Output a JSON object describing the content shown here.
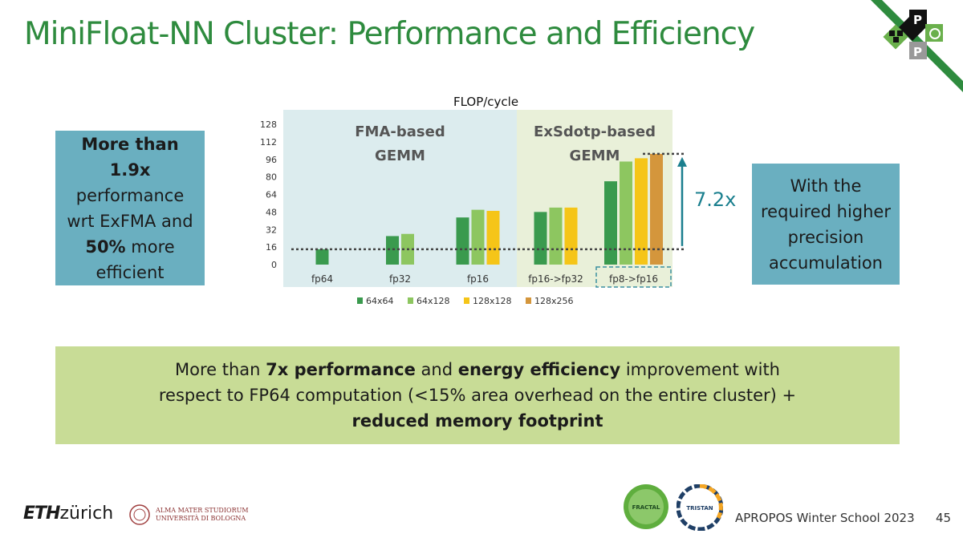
{
  "title": "MiniFloat-NN Cluster: Performance and Efficiency",
  "corner_logo": {
    "letters": [
      "P",
      "P"
    ]
  },
  "left_box": {
    "line1_bold": "More than 1.9x",
    "line2": "performance",
    "line3": "wrt ExFMA and",
    "line4_bold": "50%",
    "line4_rest": " more",
    "line5": "efficient"
  },
  "right_box": {
    "text": "With the required higher precision accumulation"
  },
  "bottom_box": {
    "part1": "More than ",
    "bold1": "7x performance",
    "part2": " and ",
    "bold2": "energy efficiency",
    "part3": " improvement with respect to FP64 computation (<15% area overhead on the entire cluster) + ",
    "bold3": "reduced memory footprint"
  },
  "footer": {
    "eth_bold": "ETH",
    "eth_rest": "zürich",
    "unibo_line1": "ALMA MATER STUDIORUM",
    "unibo_line2": "UNIVERSITÀ DI BOLOGNA",
    "fractal": "FRACTAL",
    "tristan": "TRISTAN",
    "event": "APROPOS Winter School 2023",
    "page": "45"
  },
  "colors": {
    "title": "#2e8b3e",
    "box": "#6aafc0",
    "bottom": "#c8dc96",
    "arrow": "#1a7f8e"
  },
  "chart_data": {
    "type": "bar",
    "title": "FLOP/cycle",
    "categories": [
      "fp64",
      "fp32",
      "fp16",
      "fp16->fp32",
      "fp8->fp16"
    ],
    "series": [
      {
        "name": "64x64",
        "color": "#3a9a4e",
        "values": [
          14,
          26,
          43,
          48,
          76
        ]
      },
      {
        "name": "64x128",
        "color": "#8dc660",
        "values": [
          null,
          28,
          50,
          52,
          94
        ]
      },
      {
        "name": "128x128",
        "color": "#f5c518",
        "values": [
          null,
          null,
          49,
          52,
          97
        ]
      },
      {
        "name": "128x256",
        "color": "#d4963c",
        "values": [
          null,
          null,
          null,
          null,
          101
        ]
      }
    ],
    "ylim": [
      0,
      128
    ],
    "yticks": [
      0,
      16,
      32,
      48,
      64,
      80,
      96,
      112,
      128
    ],
    "regions": [
      {
        "label_line1": "FMA-based",
        "label_line2": "GEMM",
        "from": 0,
        "to": 3,
        "color": "#dcecee"
      },
      {
        "label_line1": "ExSdotp-based",
        "label_line2": "GEMM",
        "from": 3,
        "to": 5,
        "color": "#e9f0d9"
      }
    ],
    "reference_lines": [
      14,
      101
    ],
    "annotation": "7.2x",
    "highlight_category": "fp8->fp16"
  }
}
